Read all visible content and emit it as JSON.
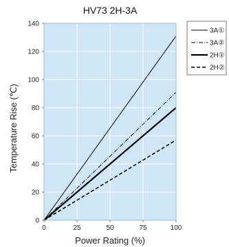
{
  "chart_data": {
    "type": "line",
    "title": "HV73 2H-3A",
    "xlabel": "Power Rating (%)",
    "ylabel": "Temperature Rise (℃)",
    "xlim": [
      0,
      100
    ],
    "ylim": [
      0,
      140
    ],
    "x_ticks": [
      "0",
      "25",
      "50",
      "75",
      "100"
    ],
    "y_ticks": [
      "0",
      "20",
      "40",
      "60",
      "80",
      "100",
      "120",
      "140"
    ],
    "grid": true,
    "background_color": "#cfe6f7",
    "legend_position": "top-right",
    "series": [
      {
        "name": "3A①",
        "x": [
          0,
          100
        ],
        "y": [
          0,
          131
        ],
        "style": "solid-thin",
        "color": "#000000"
      },
      {
        "name": "3A②",
        "x": [
          0,
          100
        ],
        "y": [
          0,
          91
        ],
        "style": "dash-dot",
        "color": "#000000"
      },
      {
        "name": "2H①",
        "x": [
          0,
          100
        ],
        "y": [
          0,
          80
        ],
        "style": "solid-thick",
        "color": "#000000"
      },
      {
        "name": "2H②",
        "x": [
          0,
          100
        ],
        "y": [
          0,
          57
        ],
        "style": "dashed",
        "color": "#000000"
      }
    ]
  }
}
